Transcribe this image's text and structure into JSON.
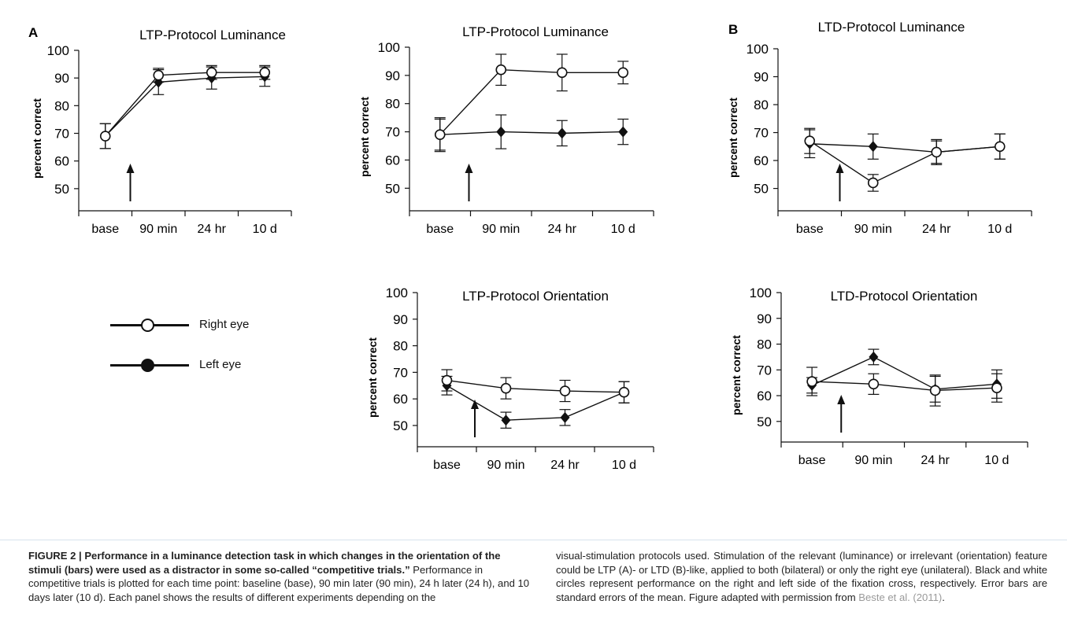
{
  "figure": {
    "panel_letters": {
      "A": "A",
      "B": "B"
    },
    "legend": {
      "right_eye": "Right eye",
      "left_eye": "Left eye"
    },
    "caption": {
      "label": "FIGURE 2 | Performance in a luminance detection task in which changes in the orientation of the stimuli (bars) were used as a distractor in some so-called “competitive trials.”",
      "text_left": " Performance in competitive trials is plotted for each time point: baseline (base), 90 min later (90 min), 24 h later (24 h), and 10 days later (10 d). Each panel shows the results of different experiments depending on the",
      "text_right": "visual-stimulation protocols used. Stimulation of the relevant (luminance) or irrelevant (orientation) feature could be LTP (A)- or LTD (B)-like, applied to both (bilateral) or only the right eye (unilateral). Black and white circles represent performance on the right and left side of the fixation cross, respectively. Error bars are standard errors of the mean. Figure adapted with permission from ",
      "citation": "Beste et al. (2011)",
      "end": "."
    }
  },
  "chart_data": [
    {
      "id": "A-top",
      "type": "line",
      "panel_letter": "A",
      "title": "LTP-Protocol Luminance",
      "xlabel": "",
      "ylabel": "percent correct",
      "categories": [
        "base",
        "90 min",
        "24 hr",
        "10 d"
      ],
      "yticks": [
        50,
        60,
        70,
        80,
        90,
        100
      ],
      "ylim": [
        42,
        100
      ],
      "arrow_after_category": "base",
      "series": [
        {
          "name": "Right eye",
          "marker": "open",
          "values": [
            69,
            91,
            92,
            92
          ],
          "err": [
            4.5,
            2.5,
            2.5,
            2.5
          ]
        },
        {
          "name": "Left eye",
          "marker": "filled",
          "values": [
            69,
            88.5,
            90,
            90.5
          ],
          "err": [
            4.5,
            4.5,
            4,
            3.5
          ]
        }
      ]
    },
    {
      "id": "A-mid-top",
      "type": "line",
      "panel_letter": "",
      "title": "LTP-Protocol Luminance",
      "xlabel": "",
      "ylabel": "percent correct",
      "categories": [
        "base",
        "90 min",
        "24 hr",
        "10 d"
      ],
      "yticks": [
        50,
        60,
        70,
        80,
        90,
        100
      ],
      "ylim": [
        42,
        100
      ],
      "arrow_after_category": "base",
      "series": [
        {
          "name": "Right eye",
          "marker": "open",
          "values": [
            69,
            92,
            91,
            91
          ],
          "err": [
            6,
            5.5,
            6.5,
            4
          ]
        },
        {
          "name": "Left eye",
          "marker": "filled",
          "values": [
            69,
            70,
            69.5,
            70
          ],
          "err": [
            5.5,
            6,
            4.5,
            4.5
          ]
        }
      ]
    },
    {
      "id": "B-top",
      "type": "line",
      "panel_letter": "B",
      "title": "LTD-Protocol Luminance",
      "xlabel": "",
      "ylabel": "percent correct",
      "categories": [
        "base",
        "90 min",
        "24 hr",
        "10 d"
      ],
      "yticks": [
        50,
        60,
        70,
        80,
        90,
        100
      ],
      "ylim": [
        42,
        100
      ],
      "arrow_after_category": "base",
      "series": [
        {
          "name": "Right eye",
          "marker": "open",
          "values": [
            67,
            52,
            63,
            65
          ],
          "err": [
            4.5,
            3,
            4.5,
            4.5
          ]
        },
        {
          "name": "Left eye",
          "marker": "filled",
          "values": [
            66,
            65,
            63,
            65
          ],
          "err": [
            5,
            4.5,
            4,
            4.5
          ]
        }
      ]
    },
    {
      "id": "A-mid-bottom",
      "type": "line",
      "panel_letter": "",
      "title": "LTP-Protocol Orientation",
      "xlabel": "",
      "ylabel": "percent correct",
      "categories": [
        "base",
        "90 min",
        "24 hr",
        "10 d"
      ],
      "yticks": [
        50,
        60,
        70,
        80,
        90,
        100
      ],
      "ylim": [
        42,
        100
      ],
      "arrow_after_category": "base",
      "series": [
        {
          "name": "Right eye",
          "marker": "open",
          "values": [
            67,
            64,
            63,
            62.5
          ],
          "err": [
            4,
            4,
            4,
            4
          ]
        },
        {
          "name": "Left eye",
          "marker": "filled",
          "values": [
            65,
            52,
            53,
            62.5
          ],
          "err": [
            3.5,
            3,
            3,
            4
          ]
        }
      ]
    },
    {
      "id": "B-bottom",
      "type": "line",
      "panel_letter": "",
      "title": "LTD-Protocol Orientation",
      "xlabel": "",
      "ylabel": "percent correct",
      "categories": [
        "base",
        "90 min",
        "24 hr",
        "10 d"
      ],
      "yticks": [
        50,
        60,
        70,
        80,
        90,
        100
      ],
      "ylim": [
        42,
        100
      ],
      "arrow_after_category": "base",
      "series": [
        {
          "name": "Right eye",
          "marker": "open",
          "values": [
            65.5,
            64.5,
            62,
            63
          ],
          "err": [
            5.5,
            4,
            6,
            5.5
          ]
        },
        {
          "name": "Left eye",
          "marker": "filled",
          "values": [
            64,
            75,
            62.5,
            64.5
          ],
          "err": [
            3,
            3,
            5,
            5.5
          ]
        }
      ]
    }
  ]
}
